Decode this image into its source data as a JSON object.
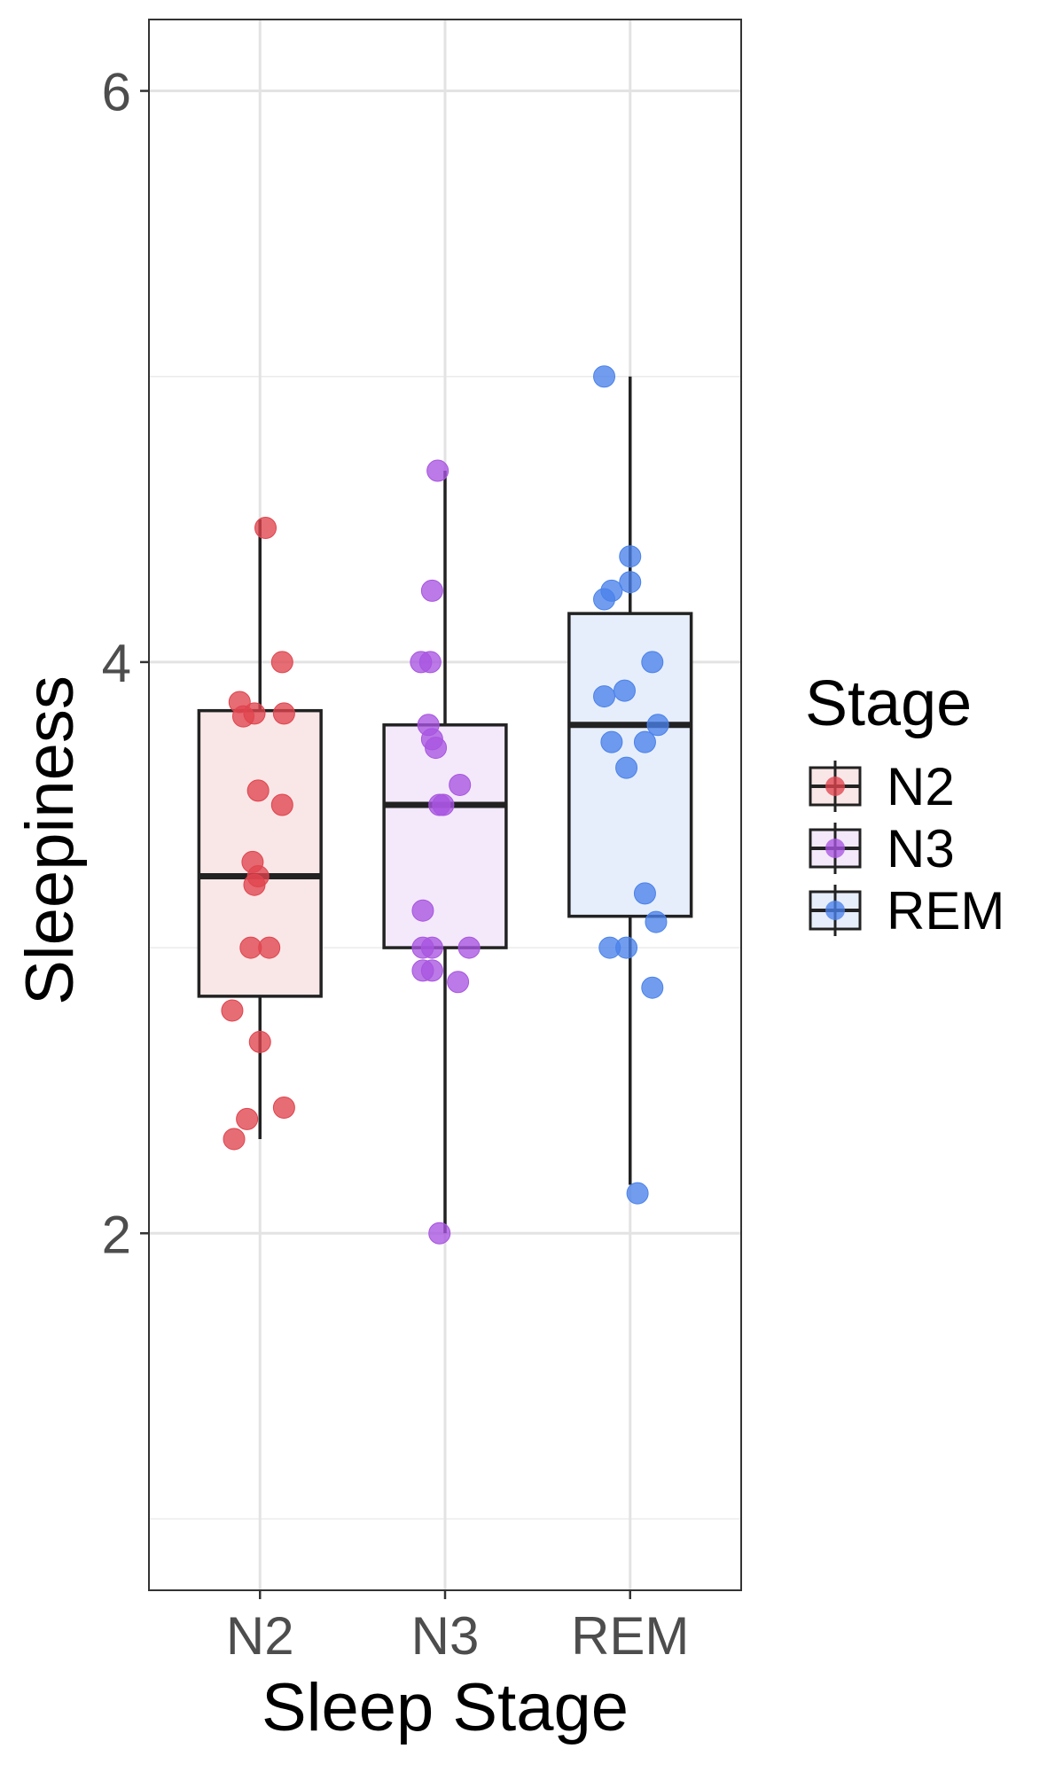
{
  "chart_data": {
    "type": "boxplot",
    "title": "",
    "xlabel": "Sleep Stage",
    "ylabel": "Sleepiness",
    "categories": [
      "N2",
      "N3",
      "REM"
    ],
    "ylim": [
      0.75,
      6.25
    ],
    "y_ticks": [
      2,
      4,
      6
    ],
    "y_minor": [
      1,
      3,
      5
    ],
    "grid": true,
    "legend": {
      "title": "Stage",
      "position": "right",
      "entries": [
        "N2",
        "N3",
        "REM"
      ]
    },
    "colors": {
      "N2": "#e0444e",
      "N3": "#a855e0",
      "REM": "#4a82ea"
    },
    "box_fills": {
      "N2": "#f9e7e7",
      "N3": "#f3e9fa",
      "REM": "#e7eefb"
    },
    "series": [
      {
        "name": "N2",
        "box": {
          "lower_whisker": 2.33,
          "q1": 2.83,
          "median": 3.25,
          "q3": 3.83,
          "upper_whisker": 4.5
        },
        "points": [
          {
            "x": 0.86,
            "y": 2.33
          },
          {
            "x": 0.93,
            "y": 2.4
          },
          {
            "x": 1.13,
            "y": 2.44
          },
          {
            "x": 1.0,
            "y": 2.67
          },
          {
            "x": 0.85,
            "y": 2.78
          },
          {
            "x": 0.95,
            "y": 3.0
          },
          {
            "x": 1.05,
            "y": 3.0
          },
          {
            "x": 0.97,
            "y": 3.22
          },
          {
            "x": 0.99,
            "y": 3.25
          },
          {
            "x": 0.96,
            "y": 3.3
          },
          {
            "x": 1.12,
            "y": 3.5
          },
          {
            "x": 0.99,
            "y": 3.55
          },
          {
            "x": 0.91,
            "y": 3.81
          },
          {
            "x": 0.97,
            "y": 3.82
          },
          {
            "x": 1.13,
            "y": 3.82
          },
          {
            "x": 0.89,
            "y": 3.86
          },
          {
            "x": 1.12,
            "y": 4.0
          },
          {
            "x": 1.03,
            "y": 4.47
          }
        ]
      },
      {
        "name": "N3",
        "box": {
          "lower_whisker": 2.0,
          "q1": 3.0,
          "median": 3.5,
          "q3": 3.78,
          "upper_whisker": 4.67
        },
        "points": [
          {
            "x": 1.97,
            "y": 2.0
          },
          {
            "x": 2.07,
            "y": 2.88
          },
          {
            "x": 1.88,
            "y": 2.92
          },
          {
            "x": 1.93,
            "y": 2.92
          },
          {
            "x": 1.88,
            "y": 3.0
          },
          {
            "x": 1.93,
            "y": 3.0
          },
          {
            "x": 2.13,
            "y": 3.0
          },
          {
            "x": 1.88,
            "y": 3.13
          },
          {
            "x": 1.97,
            "y": 3.5
          },
          {
            "x": 1.99,
            "y": 3.5
          },
          {
            "x": 2.08,
            "y": 3.57
          },
          {
            "x": 1.95,
            "y": 3.7
          },
          {
            "x": 1.93,
            "y": 3.73
          },
          {
            "x": 1.91,
            "y": 3.78
          },
          {
            "x": 1.87,
            "y": 4.0
          },
          {
            "x": 1.92,
            "y": 4.0
          },
          {
            "x": 1.93,
            "y": 4.25
          },
          {
            "x": 1.96,
            "y": 4.67
          }
        ]
      },
      {
        "name": "REM",
        "box": {
          "lower_whisker": 2.17,
          "q1": 3.11,
          "median": 3.78,
          "q3": 4.17,
          "upper_whisker": 5.0
        },
        "points": [
          {
            "x": 3.04,
            "y": 2.14
          },
          {
            "x": 3.12,
            "y": 2.86
          },
          {
            "x": 2.89,
            "y": 3.0
          },
          {
            "x": 2.98,
            "y": 3.0
          },
          {
            "x": 3.14,
            "y": 3.09
          },
          {
            "x": 3.08,
            "y": 3.19
          },
          {
            "x": 2.98,
            "y": 3.63
          },
          {
            "x": 2.9,
            "y": 3.72
          },
          {
            "x": 3.08,
            "y": 3.72
          },
          {
            "x": 3.15,
            "y": 3.78
          },
          {
            "x": 2.86,
            "y": 3.88
          },
          {
            "x": 2.97,
            "y": 3.9
          },
          {
            "x": 3.12,
            "y": 4.0
          },
          {
            "x": 2.86,
            "y": 4.22
          },
          {
            "x": 2.9,
            "y": 4.25
          },
          {
            "x": 3.0,
            "y": 4.28
          },
          {
            "x": 3.0,
            "y": 4.37
          },
          {
            "x": 2.86,
            "y": 5.0
          }
        ]
      }
    ]
  }
}
